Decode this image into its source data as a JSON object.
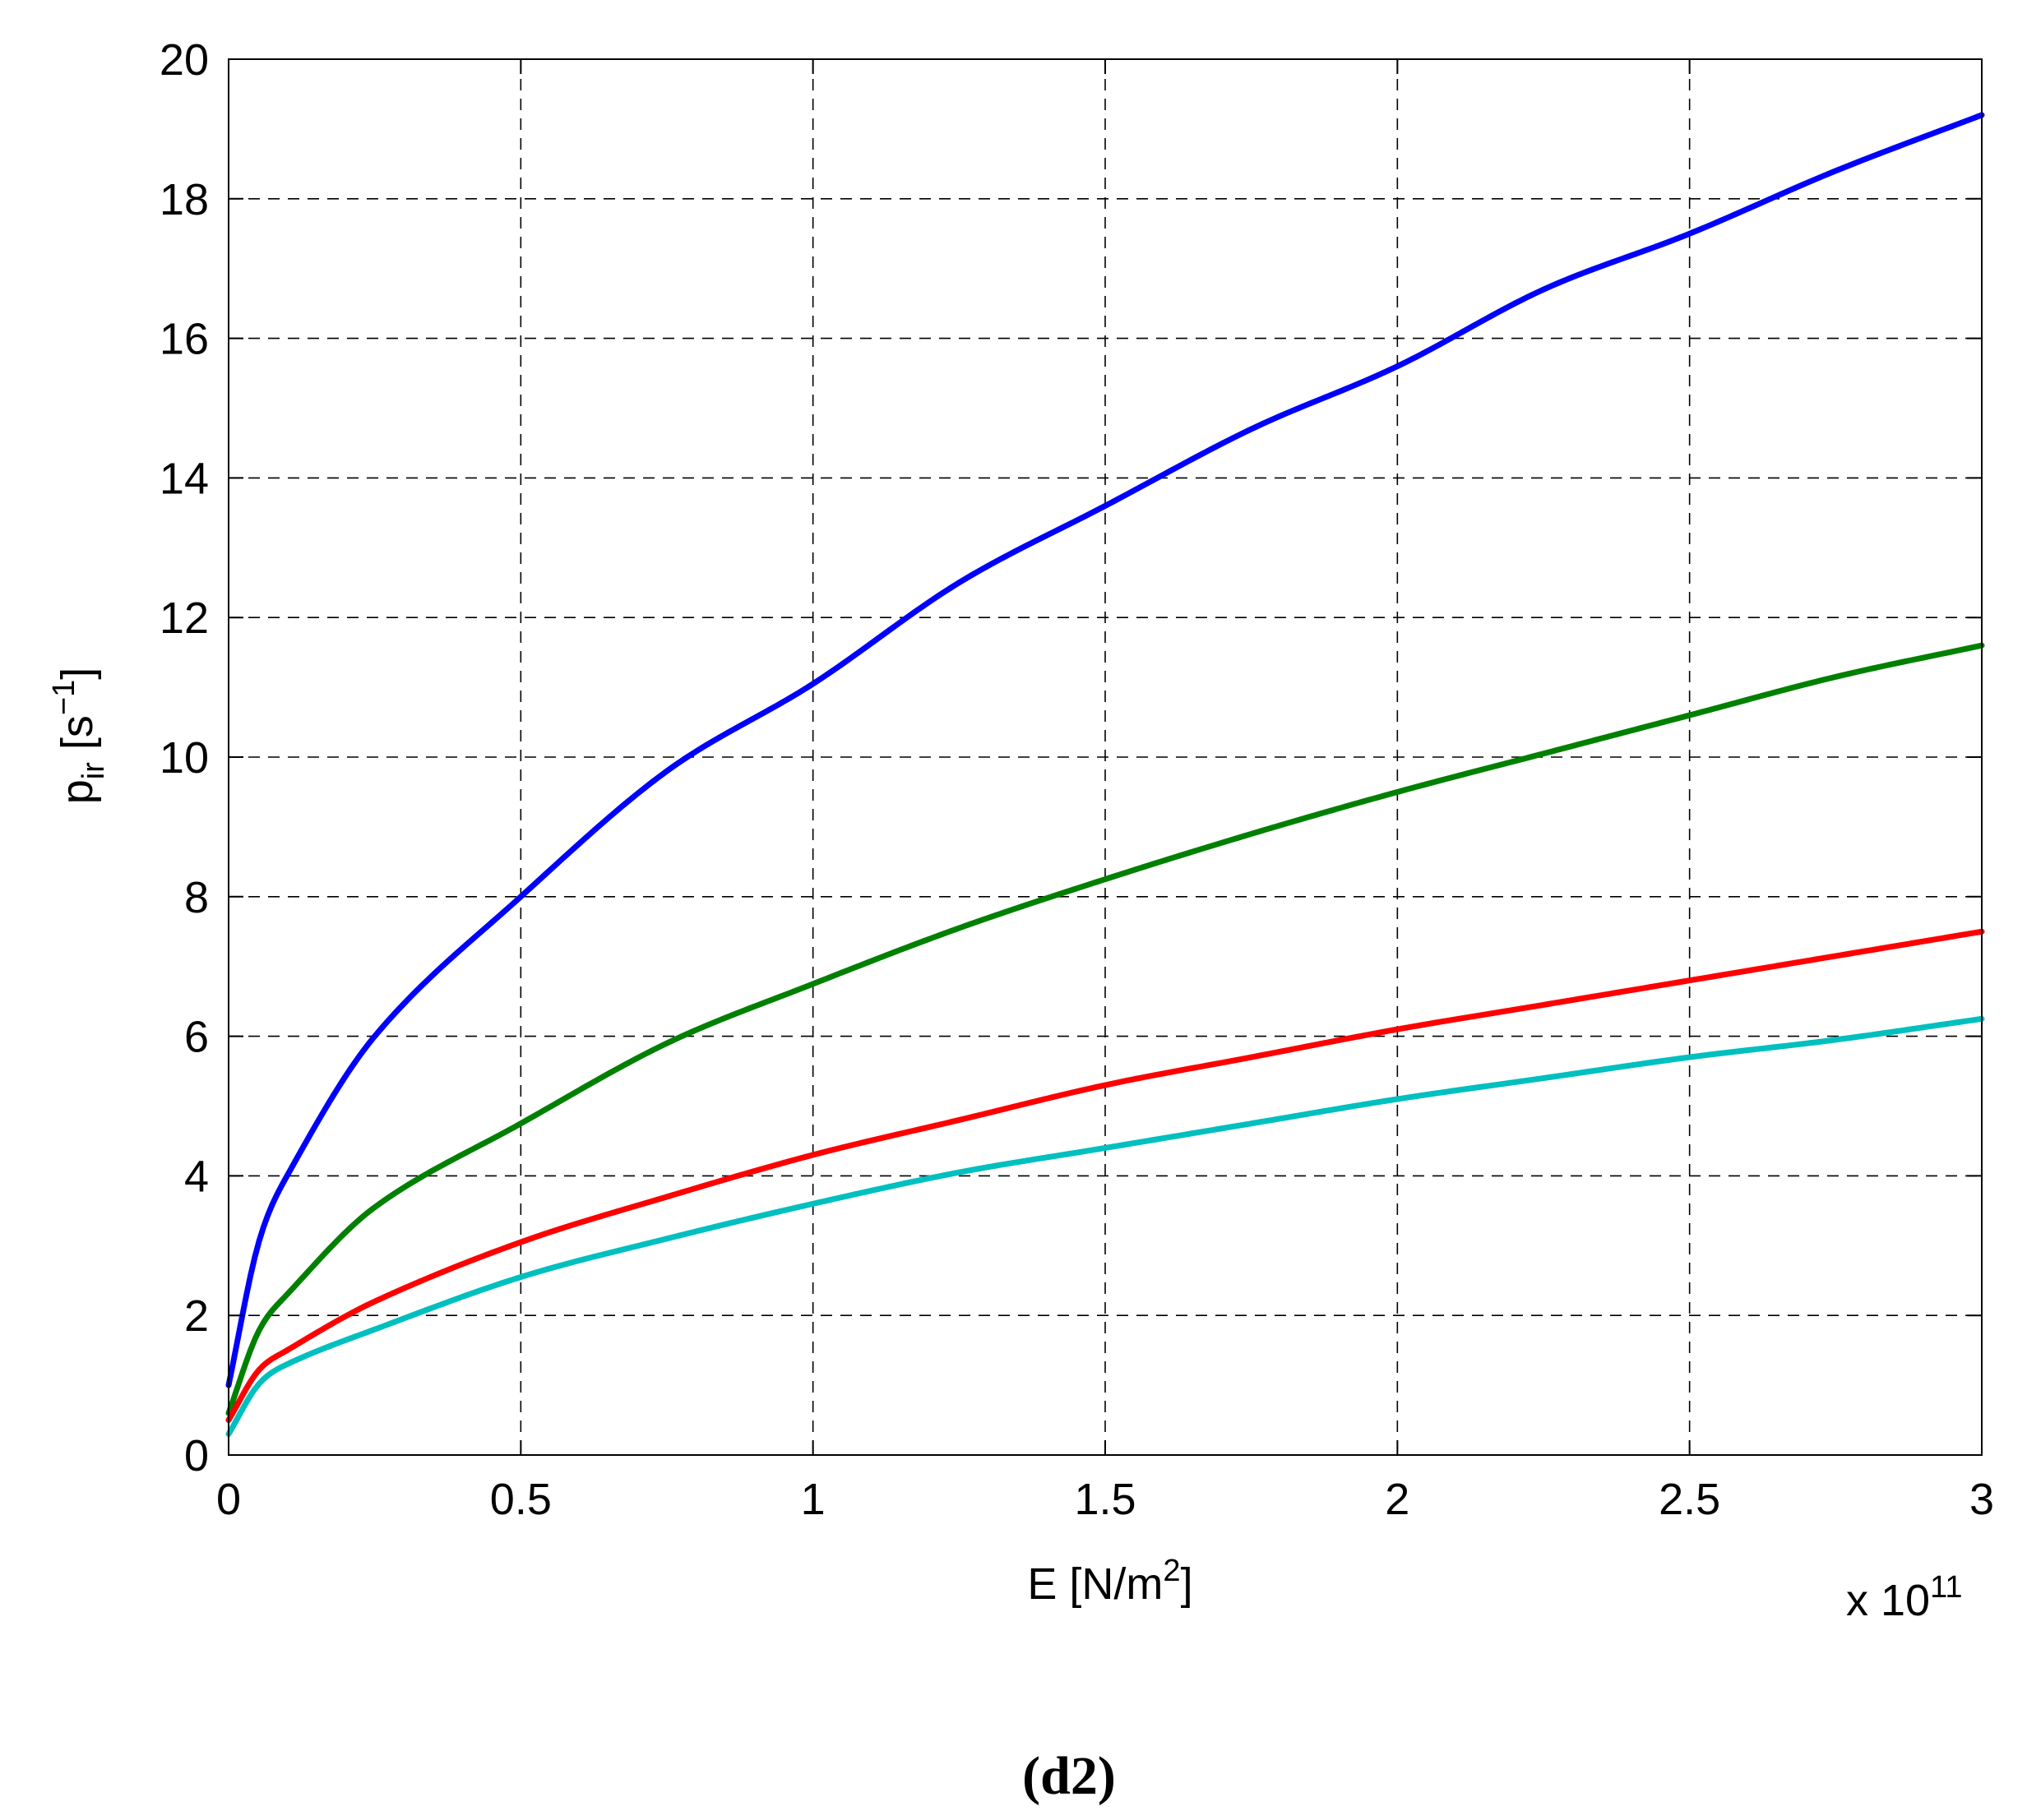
{
  "chart_data": {
    "type": "line",
    "xlabel": {
      "base": "E [N/m",
      "sup": "2",
      "tail": "]"
    },
    "ylabel": {
      "base": "p",
      "sub": "ir",
      "mid": " [s",
      "sup": "−1",
      "tail": "]"
    },
    "x_multiplier": {
      "base": "x 10",
      "sup": "11"
    },
    "caption": "(d2)",
    "xlim": [
      0,
      3
    ],
    "ylim": [
      0,
      20
    ],
    "x_ticks": [
      0,
      0.5,
      1,
      1.5,
      2,
      2.5,
      3
    ],
    "x_tick_labels": [
      "0",
      "0.5",
      "1",
      "1.5",
      "2",
      "2.5",
      "3"
    ],
    "y_ticks": [
      0,
      2,
      4,
      6,
      8,
      10,
      12,
      14,
      16,
      18,
      20
    ],
    "y_tick_labels": [
      "0",
      "2",
      "4",
      "6",
      "8",
      "10",
      "12",
      "14",
      "16",
      "18",
      "20"
    ],
    "grid": true,
    "x": [
      0,
      0.05,
      0.1,
      0.25,
      0.5,
      0.75,
      1,
      1.25,
      1.5,
      1.75,
      2,
      2.25,
      2.5,
      2.75,
      3
    ],
    "series": [
      {
        "color": "#0000ff",
        "values": [
          1.0,
          3.0,
          4.0,
          6.0,
          8.0,
          9.8,
          11.05,
          12.5,
          13.6,
          14.7,
          15.6,
          16.7,
          17.5,
          18.4,
          19.2
        ]
      },
      {
        "color": "#008000",
        "values": [
          0.6,
          1.75,
          2.3,
          3.55,
          4.75,
          5.9,
          6.75,
          7.55,
          8.25,
          8.9,
          9.5,
          10.05,
          10.6,
          11.15,
          11.6
        ]
      },
      {
        "color": "#ff0000",
        "values": [
          0.5,
          1.2,
          1.5,
          2.2,
          3.05,
          3.7,
          4.3,
          4.8,
          5.3,
          5.7,
          6.1,
          6.45,
          6.8,
          7.15,
          7.5
        ]
      },
      {
        "color": "#00bfbf",
        "values": [
          0.3,
          1.0,
          1.3,
          1.8,
          2.55,
          3.1,
          3.6,
          4.05,
          4.4,
          4.75,
          5.1,
          5.4,
          5.7,
          5.95,
          6.25
        ]
      }
    ]
  }
}
